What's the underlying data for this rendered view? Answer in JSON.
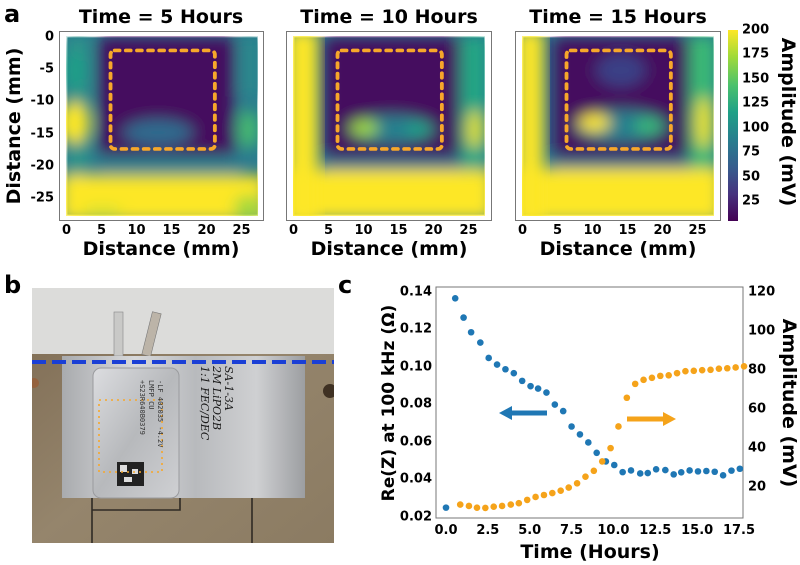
{
  "panel_labels": {
    "a": "a",
    "b": "b",
    "c": "c"
  },
  "colors": {
    "viridis": [
      "#440154",
      "#46327e",
      "#365c8d",
      "#277f8e",
      "#1fa187",
      "#4ac16d",
      "#a0da39",
      "#fde725"
    ],
    "roi_box": "#f7a72a",
    "series_resistance": "#1f77b4",
    "series_amplitude": "#f5a31a",
    "cut_line": "#1a3fd6"
  },
  "chart_data": [
    {
      "type": "heatmap",
      "panels": [
        {
          "title": "Time = 5 Hours"
        },
        {
          "title": "Time = 10 Hours"
        },
        {
          "title": "Time = 15 Hours"
        }
      ],
      "xlabel": "Distance (mm)",
      "ylabel": "Distance (mm)",
      "xticks": [
        "0",
        "5",
        "10",
        "15",
        "20",
        "25"
      ],
      "yticks": [
        "0",
        "-5",
        "-10",
        "-15",
        "-20",
        "-25"
      ],
      "xlim": [
        0,
        27
      ],
      "ylim": [
        -27,
        0
      ],
      "colorbar": {
        "label": "Amplitude (mV)",
        "ticks": [
          "200",
          "175",
          "150",
          "125",
          "100",
          "75",
          "50",
          "25"
        ],
        "range": [
          5,
          200
        ],
        "colormap": "viridis"
      }
    },
    {
      "type": "scatter",
      "xlabel": "Time (Hours)",
      "ylabel_left": "Re(Z) at 100 kHz (Ω)",
      "ylabel_right": "Amplitude (mV)",
      "xticks": [
        "0.0",
        "2.5",
        "5.0",
        "7.5",
        "10.0",
        "12.5",
        "15.0",
        "17.5"
      ],
      "yticks_left": [
        "0.14",
        "0.12",
        "0.10",
        "0.08",
        "0.06",
        "0.04",
        "0.02"
      ],
      "yticks_right": [
        "120",
        "100",
        "80",
        "60",
        "40",
        "20"
      ],
      "xlim": [
        -0.6,
        17.8
      ],
      "ylim_left": [
        0.02,
        0.14
      ],
      "ylim_right": [
        5,
        120
      ],
      "series": [
        {
          "axis": "left",
          "x": [
            0.0,
            0.55,
            1.05,
            1.5,
            2.05,
            2.55,
            3.05,
            3.55,
            4.05,
            4.55,
            5.05,
            5.5,
            6.0,
            6.5,
            7.0,
            7.5,
            8.0,
            8.5,
            9.0,
            9.55,
            10.05,
            10.55,
            11.05,
            11.6,
            12.05,
            12.55,
            13.1,
            13.6,
            14.05,
            14.55,
            15.05,
            15.55,
            16.05,
            16.55,
            17.05,
            17.55
          ],
          "y": [
            0.025,
            0.1365,
            0.1262,
            0.1184,
            0.1129,
            0.1047,
            0.1012,
            0.0987,
            0.0966,
            0.0925,
            0.0897,
            0.0884,
            0.0863,
            0.0799,
            0.0764,
            0.0682,
            0.064,
            0.0597,
            0.0542,
            0.0496,
            0.0477,
            0.0439,
            0.0448,
            0.0432,
            0.0434,
            0.0454,
            0.045,
            0.0427,
            0.0438,
            0.0448,
            0.0443,
            0.0445,
            0.0441,
            0.0422,
            0.0447,
            0.0457
          ]
        },
        {
          "axis": "right",
          "x": [
            0.85,
            1.37,
            1.85,
            2.35,
            2.85,
            3.35,
            3.87,
            4.35,
            4.85,
            5.35,
            5.85,
            6.35,
            6.85,
            7.33,
            7.83,
            8.33,
            8.83,
            9.33,
            9.83,
            10.3,
            10.8,
            11.3,
            11.8,
            12.3,
            12.8,
            13.3,
            13.8,
            14.3,
            14.8,
            15.3,
            15.8,
            16.3,
            16.8,
            17.3,
            17.8
          ],
          "y": [
            11.0,
            10.3,
            9.4,
            9.3,
            9.9,
            10.3,
            11.0,
            11.7,
            13.4,
            14.9,
            15.9,
            16.9,
            18.1,
            19.7,
            21.9,
            25.3,
            28.3,
            33.1,
            39.9,
            51.0,
            65.7,
            72.8,
            74.9,
            75.9,
            76.9,
            77.2,
            78.3,
            79.3,
            79.5,
            79.8,
            80.0,
            80.6,
            80.8,
            81.2,
            81.8
          ]
        }
      ],
      "annotations": [
        {
          "type": "arrow",
          "direction": "left",
          "series_axis": "left"
        },
        {
          "type": "arrow",
          "direction": "right",
          "series_axis": "right"
        }
      ],
      "grid": false
    }
  ],
  "photo": {
    "cell_print": [
      "-LF 402035 -4.2V",
      "LMFP        CU",
      "+S23R640B0379"
    ],
    "handwriting": [
      "SA-1-3A",
      "2M LiPO2B",
      "1:1 FEC/DEC"
    ]
  }
}
